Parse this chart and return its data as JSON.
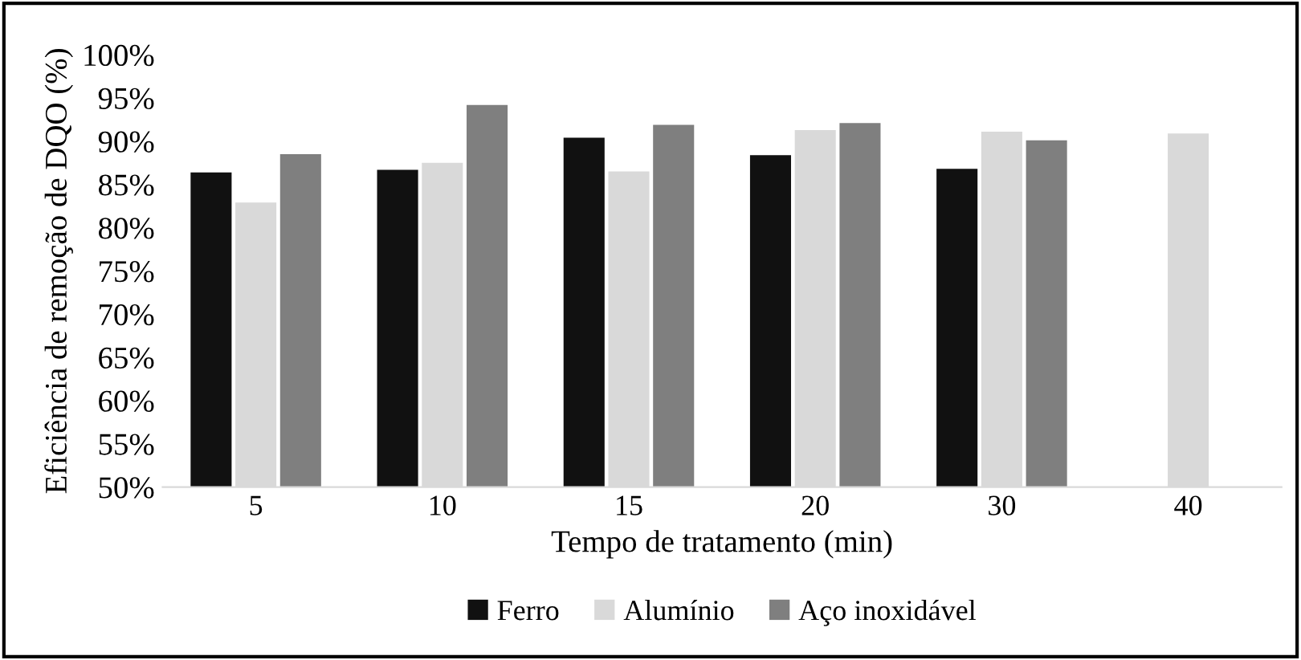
{
  "chart_data": {
    "type": "bar",
    "xlabel": "Tempo de tratamento (min)",
    "ylabel": "Eficiência de remoção de DQO (%)",
    "categories": [
      "5",
      "10",
      "15",
      "20",
      "30",
      "40"
    ],
    "series": [
      {
        "name": "Ferro",
        "color": "#111111",
        "values": [
          86.4,
          86.7,
          90.4,
          88.4,
          86.8,
          null
        ]
      },
      {
        "name": "Alumínio",
        "color": "#d9d9d9",
        "values": [
          82.9,
          87.5,
          86.5,
          91.3,
          91.1,
          90.9
        ]
      },
      {
        "name": "Aço inoxidável",
        "color": "#7f7f7f",
        "values": [
          88.5,
          94.2,
          91.9,
          92.1,
          90.1,
          null
        ]
      }
    ],
    "ylim": [
      50,
      100
    ],
    "yticks": [
      {
        "value": 50,
        "label": "50%"
      },
      {
        "value": 55,
        "label": "55%"
      },
      {
        "value": 60,
        "label": "60%"
      },
      {
        "value": 65,
        "label": "65%"
      },
      {
        "value": 70,
        "label": "70%"
      },
      {
        "value": 75,
        "label": "75%"
      },
      {
        "value": 80,
        "label": "80%"
      },
      {
        "value": 85,
        "label": "85%"
      },
      {
        "value": 90,
        "label": "90%"
      },
      {
        "value": 95,
        "label": "95%"
      },
      {
        "value": 100,
        "label": "100%"
      }
    ],
    "grid": false,
    "legend": "bottom"
  }
}
